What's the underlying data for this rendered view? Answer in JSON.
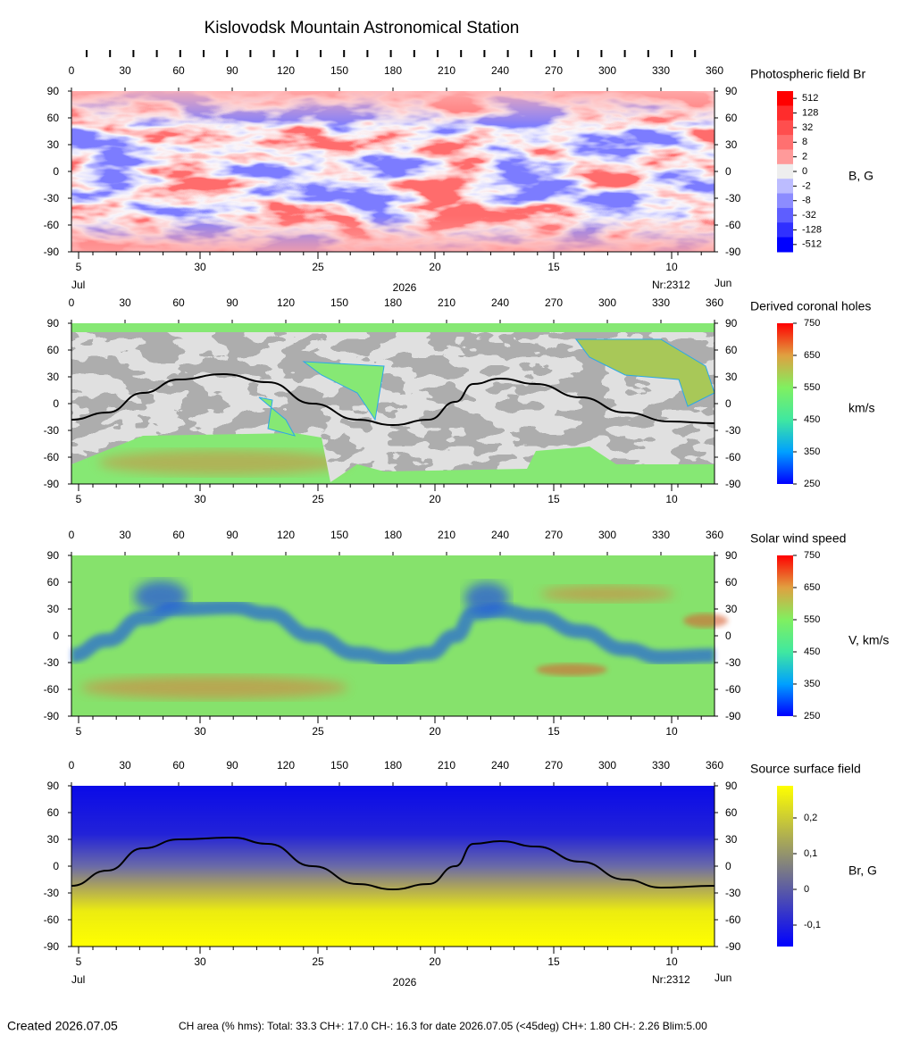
{
  "title": "Kislovodsk Mountain Astronomical Station",
  "footer": {
    "created": "Created  2026.07.05",
    "ch_area": "CH area (% hms): Total: 33.3 CH+: 17.0   CH-: 16.3 for date 2026.07.05 (<45deg) CH+: 1.80    CH-: 2.26 Blim:5.00"
  },
  "chart_data": [
    {
      "type": "map",
      "colorbar_title": "Photospheric field Br",
      "colorbar_unit": "B, G",
      "xlim": [
        0,
        360
      ],
      "xticks": [
        0,
        30,
        60,
        90,
        120,
        150,
        180,
        210,
        240,
        270,
        300,
        330,
        360
      ],
      "ylim": [
        -90,
        90
      ],
      "yticks": [
        -90,
        -60,
        -30,
        0,
        30,
        60,
        90
      ],
      "date_ticks": [
        {
          "value": 4,
          "label": "5"
        },
        {
          "value": 72,
          "label": "30"
        },
        {
          "value": 138,
          "label": "25"
        },
        {
          "value": 203.5,
          "label": "20"
        },
        {
          "value": 270,
          "label": "15"
        },
        {
          "value": 336,
          "label": "10"
        }
      ],
      "month_left": "Jul",
      "year": "2026",
      "rotation": "Nr:2312",
      "month_right": "Jun",
      "colorbar": {
        "levels": [
          512,
          128,
          32,
          8,
          2,
          0,
          -2,
          -8,
          -32,
          -128,
          -512
        ],
        "colors": [
          "#ff0000",
          "#ff2c2c",
          "#ff4e4e",
          "#ff7070",
          "#ff9a9a",
          "#eeeeee",
          "#bcbcff",
          "#8c8cff",
          "#5e5eff",
          "#3030ff",
          "#0000ff"
        ]
      }
    },
    {
      "type": "map",
      "colorbar_title": "Derived coronal holes",
      "colorbar_unit": "km/s",
      "xlim": [
        0,
        360
      ],
      "xticks": [
        0,
        30,
        60,
        90,
        120,
        150,
        180,
        210,
        240,
        270,
        300,
        330,
        360
      ],
      "ylim": [
        -90,
        90
      ],
      "yticks": [
        -90,
        -60,
        -30,
        0,
        30,
        60,
        90
      ],
      "date_ticks": [
        {
          "value": 4,
          "label": "5"
        },
        {
          "value": 72,
          "label": "30"
        },
        {
          "value": 138,
          "label": "25"
        },
        {
          "value": 203.5,
          "label": "20"
        },
        {
          "value": 270,
          "label": "15"
        },
        {
          "value": 336,
          "label": "10"
        }
      ],
      "colorbar": {
        "clim": [
          250,
          750
        ],
        "ticks": [
          250,
          350,
          450,
          550,
          650,
          750
        ],
        "colors": [
          "#0000ff",
          "#00a0ff",
          "#40e8a0",
          "#80f060",
          "#e0a040",
          "#ff0000"
        ]
      },
      "neutral_line": {
        "color": "#000000",
        "x": [
          0,
          20,
          40,
          60,
          85,
          110,
          135,
          160,
          180,
          200,
          215,
          225,
          240,
          260,
          285,
          310,
          335,
          360
        ],
        "values": [
          -18,
          -10,
          12,
          27,
          33,
          24,
          0,
          -18,
          -24,
          -18,
          2,
          22,
          28,
          22,
          7,
          -10,
          -20,
          -22
        ]
      }
    },
    {
      "type": "map",
      "colorbar_title": "Solar wind speed",
      "colorbar_unit": "V, km/s",
      "xlim": [
        0,
        360
      ],
      "xticks": [
        0,
        30,
        60,
        90,
        120,
        150,
        180,
        210,
        240,
        270,
        300,
        330,
        360
      ],
      "ylim": [
        -90,
        90
      ],
      "yticks": [
        -90,
        -60,
        -30,
        0,
        30,
        60,
        90
      ],
      "date_ticks": [
        {
          "value": 4,
          "label": "5"
        },
        {
          "value": 72,
          "label": "30"
        },
        {
          "value": 138,
          "label": "25"
        },
        {
          "value": 203.5,
          "label": "20"
        },
        {
          "value": 270,
          "label": "15"
        },
        {
          "value": 336,
          "label": "10"
        }
      ],
      "colorbar": {
        "clim": [
          250,
          750
        ],
        "ticks": [
          250,
          350,
          450,
          550,
          650,
          750
        ],
        "colors": [
          "#0000ff",
          "#00a0ff",
          "#40e8a0",
          "#80f060",
          "#e0a040",
          "#ff0000"
        ]
      }
    },
    {
      "type": "map",
      "colorbar_title": "Source surface field",
      "colorbar_unit": "Br, G",
      "xlim": [
        0,
        360
      ],
      "xticks": [
        0,
        30,
        60,
        90,
        120,
        150,
        180,
        210,
        240,
        270,
        300,
        330,
        360
      ],
      "ylim": [
        -90,
        90
      ],
      "yticks": [
        -90,
        -60,
        -30,
        0,
        30,
        60,
        90
      ],
      "date_ticks": [
        {
          "value": 4,
          "label": "5"
        },
        {
          "value": 72,
          "label": "30"
        },
        {
          "value": 138,
          "label": "25"
        },
        {
          "value": 203.5,
          "label": "20"
        },
        {
          "value": 270,
          "label": "15"
        },
        {
          "value": 336,
          "label": "10"
        }
      ],
      "month_left": "Jul",
      "year": "2026",
      "rotation": "Nr:2312",
      "month_right": "Jun",
      "colorbar": {
        "clim": [
          -0.16,
          0.29
        ],
        "ticks": [
          {
            "value": -0.1,
            "label": "-0,1"
          },
          {
            "value": 0,
            "label": "0"
          },
          {
            "value": 0.1,
            "label": "0,1"
          },
          {
            "value": 0.2,
            "label": "0,2"
          }
        ],
        "colors": [
          "#0000ff",
          "#808080",
          "#ffff00"
        ]
      },
      "neutral_line": {
        "color": "#000000",
        "x": [
          0,
          20,
          40,
          60,
          90,
          110,
          135,
          160,
          180,
          200,
          215,
          225,
          240,
          260,
          285,
          310,
          330,
          360
        ],
        "values": [
          -22,
          -5,
          20,
          30,
          32,
          25,
          0,
          -20,
          -26,
          -20,
          0,
          25,
          28,
          22,
          5,
          -15,
          -24,
          -22
        ]
      }
    }
  ]
}
